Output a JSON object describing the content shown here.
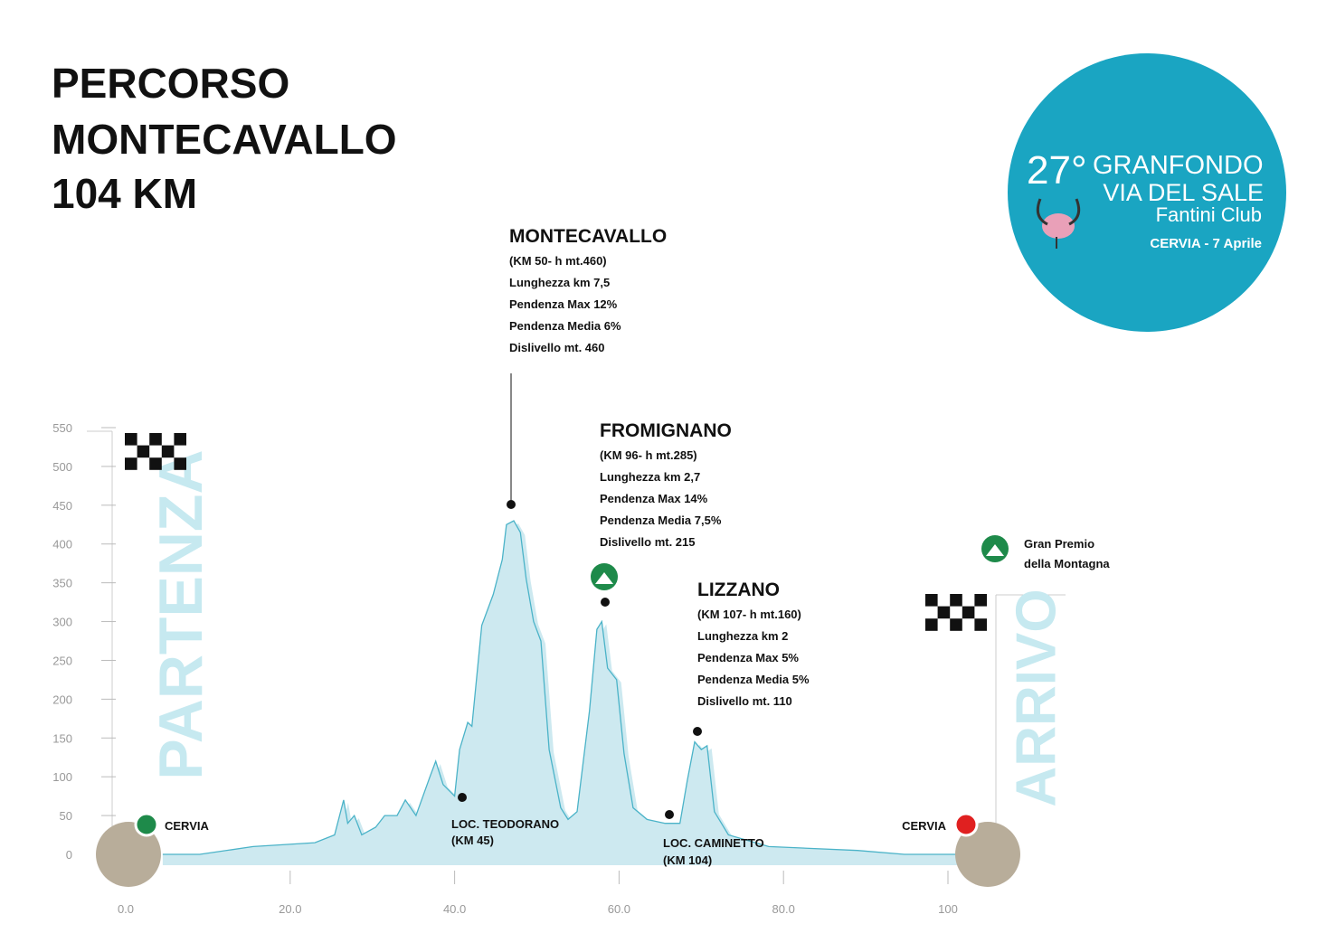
{
  "chart_data": {
    "type": "area",
    "title": [
      "PERCORSO",
      "MONTECAVALLO",
      "104 KM"
    ],
    "x": [
      4.5,
      9,
      15.5,
      23,
      25.4,
      26.5,
      27,
      27.8,
      28.7,
      30.4,
      31.5,
      33,
      34,
      35.3,
      37,
      37.7,
      38.6,
      40,
      40.6,
      41.6,
      42.1,
      43.3,
      44.7,
      45.8,
      46.3,
      47.2,
      48,
      48.7,
      49.6,
      50.5,
      51.5,
      52.9,
      53.8,
      54.9,
      56.4,
      57.3,
      57.9,
      58.6,
      59.7,
      60.6,
      61.7,
      63.4,
      65.6,
      67.4,
      68.3,
      69.2,
      70,
      70.7,
      71.6,
      73.3,
      78.2,
      89,
      94.7,
      101.3
    ],
    "values": [
      0,
      0,
      10,
      15,
      25,
      70,
      40,
      50,
      25,
      35,
      50,
      50,
      70,
      50,
      100,
      120,
      90,
      75,
      135,
      170,
      165,
      295,
      335,
      380,
      425,
      430,
      415,
      355,
      300,
      275,
      135,
      60,
      45,
      55,
      185,
      290,
      300,
      240,
      225,
      130,
      60,
      45,
      40,
      40,
      95,
      145,
      135,
      140,
      55,
      25,
      10,
      5,
      0,
      0
    ],
    "color": "#4bb3c8",
    "fill": "#cde9f0",
    "xlim": [
      0,
      100
    ],
    "ylim": [
      0,
      550
    ],
    "xticks": [
      {
        "value": 0,
        "label": "0.0"
      },
      {
        "value": 20,
        "label": "20.0"
      },
      {
        "value": 40,
        "label": "40.0"
      },
      {
        "value": 60,
        "label": "60.0"
      },
      {
        "value": 80,
        "label": "80.0"
      },
      100
    ],
    "yticks": [
      0,
      50,
      100,
      150,
      200,
      250,
      300,
      350,
      400,
      450,
      500,
      550
    ],
    "climbs": [
      {
        "name": "MONTECAVALLO",
        "lines": [
          "(KM 50- h mt.460)",
          "Lunghezza km 7,5",
          "Pendenza Max 12%",
          "Pendenza Media 6%",
          "Dislivello mt. 460"
        ]
      },
      {
        "name": "FROMIGNANO",
        "lines": [
          "(KM 96- h mt.285)",
          "Lunghezza km 2,7",
          "Pendenza Max 14%",
          "Pendenza Media 7,5%",
          "Dislivello mt. 215"
        ]
      },
      {
        "name": "LIZZANO",
        "lines": [
          "(KM 107- h mt.160)",
          "Lunghezza km 2",
          "Pendenza Max 5%",
          "Pendenza Media 5%",
          "Dislivello mt. 110"
        ]
      }
    ],
    "places": [
      [
        "LOC. TEODORANO",
        "(KM 45)"
      ],
      [
        "LOC. CAMINETTO",
        "(KM 104)"
      ]
    ],
    "start": {
      "label": "PARTENZA",
      "town": "CERVIA"
    },
    "finish": {
      "label": "ARRIVO",
      "town": "CERVIA"
    },
    "legend": [
      "Gran Premio",
      "della Montagna"
    ],
    "badge": {
      "number": "27°",
      "line1": "GRANFONDO",
      "line2": "VIA DEL SALE",
      "line3": "Fantini Club",
      "line4": "CERVIA - 7 Aprile"
    }
  }
}
